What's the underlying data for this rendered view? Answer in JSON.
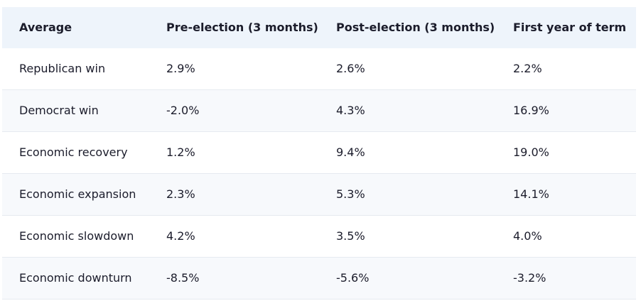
{
  "table": {
    "header": [
      "Average",
      "Pre-election (3 months)",
      "Post-election (3 months)",
      "First year of term"
    ],
    "rows": [
      [
        "Republican win",
        "2.9%",
        "2.6%",
        "2.2%"
      ],
      [
        "Democrat win",
        "-2.0%",
        "4.3%",
        "16.9%"
      ],
      [
        "Economic recovery",
        "1.2%",
        "9.4%",
        "19.0%"
      ],
      [
        "Economic expansion",
        "2.3%",
        "5.3%",
        "14.1%"
      ],
      [
        "Economic slowdown",
        "4.2%",
        "3.5%",
        "4.0%"
      ],
      [
        "Economic downturn",
        "-8.5%",
        "-5.6%",
        "-3.2%"
      ]
    ]
  }
}
